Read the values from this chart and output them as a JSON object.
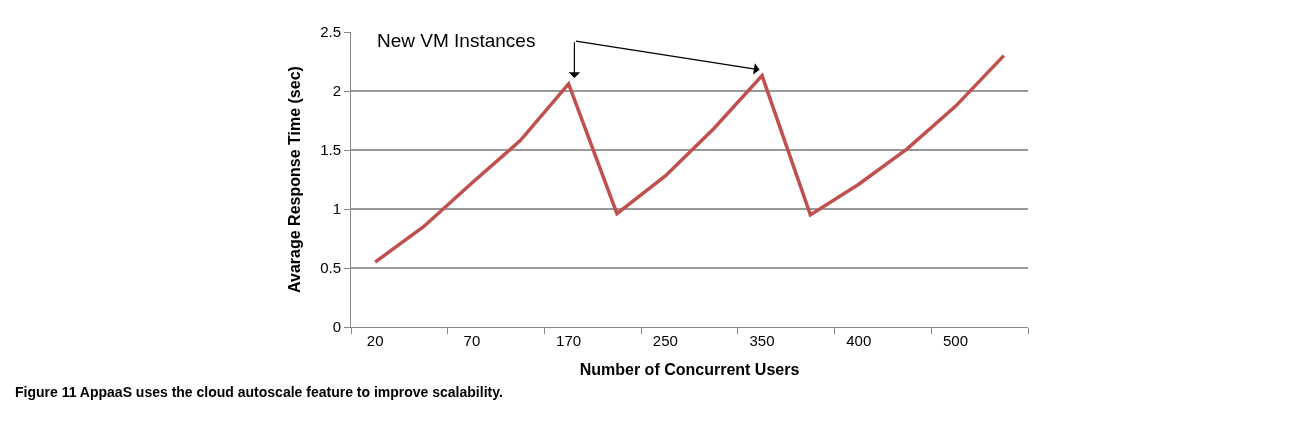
{
  "chart_data": {
    "type": "line",
    "xlabel": "Number of Concurrent Users",
    "ylabel": "Avarage Response Time (sec)",
    "categories": [
      "20",
      null,
      "70",
      null,
      "170",
      null,
      "250",
      null,
      "350",
      null,
      "400",
      null,
      "500",
      null
    ],
    "series": [
      {
        "color": "#c0504d",
        "values": [
          0.55,
          0.85,
          1.22,
          1.58,
          2.06,
          0.96,
          1.28,
          1.68,
          2.13,
          0.95,
          1.21,
          1.51,
          1.87,
          2.3
        ]
      }
    ],
    "ylim": [
      0,
      2.5
    ],
    "yticks": [
      0,
      0.5,
      1,
      1.5,
      2,
      2.5
    ],
    "grid": "y",
    "marker": "none",
    "line_style": "solid",
    "annotations": [
      "New VM Instances",
      "Figure 11 AppaaS uses the cloud autoscale feature to improve scalability."
    ]
  }
}
